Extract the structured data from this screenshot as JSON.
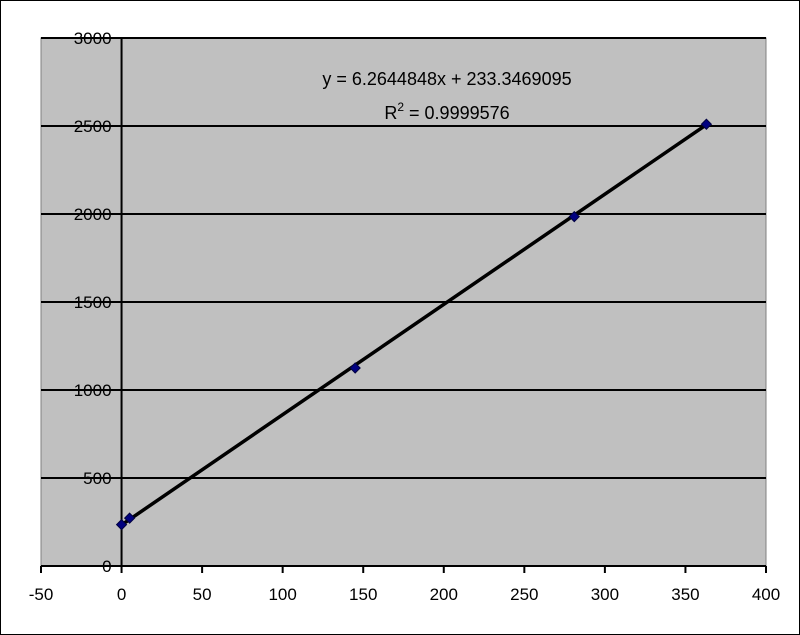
{
  "chart_data": {
    "type": "scatter",
    "title": "",
    "xlabel": "",
    "ylabel": "",
    "xlim": [
      -50,
      400
    ],
    "ylim": [
      0,
      3000
    ],
    "x_ticks": [
      -50,
      0,
      50,
      100,
      150,
      200,
      250,
      300,
      350,
      400
    ],
    "y_ticks": [
      0,
      500,
      1000,
      1500,
      2000,
      2500,
      3000
    ],
    "grid": "horizontal",
    "legend": "none",
    "series": [
      {
        "points": [
          {
            "x": 0,
            "y": 235
          },
          {
            "x": 5,
            "y": 272
          },
          {
            "x": 145,
            "y": 1125
          },
          {
            "x": 281,
            "y": 1985
          },
          {
            "x": 363,
            "y": 2510
          }
        ]
      }
    ],
    "trendline": {
      "type": "linear",
      "slope": 6.2644848,
      "intercept": 233.3469095,
      "x_range": [
        0,
        363
      ]
    },
    "annotations": {
      "equation": "y = 6.2644848x + 233.3469095",
      "r2_prefix": "R",
      "r2_sup": "2",
      "r2_value": " = 0.9999576"
    },
    "colors": {
      "plot_background": "#c0c0c0",
      "gridline": "#000000",
      "marker": "#000080",
      "trendline": "#000000"
    }
  }
}
